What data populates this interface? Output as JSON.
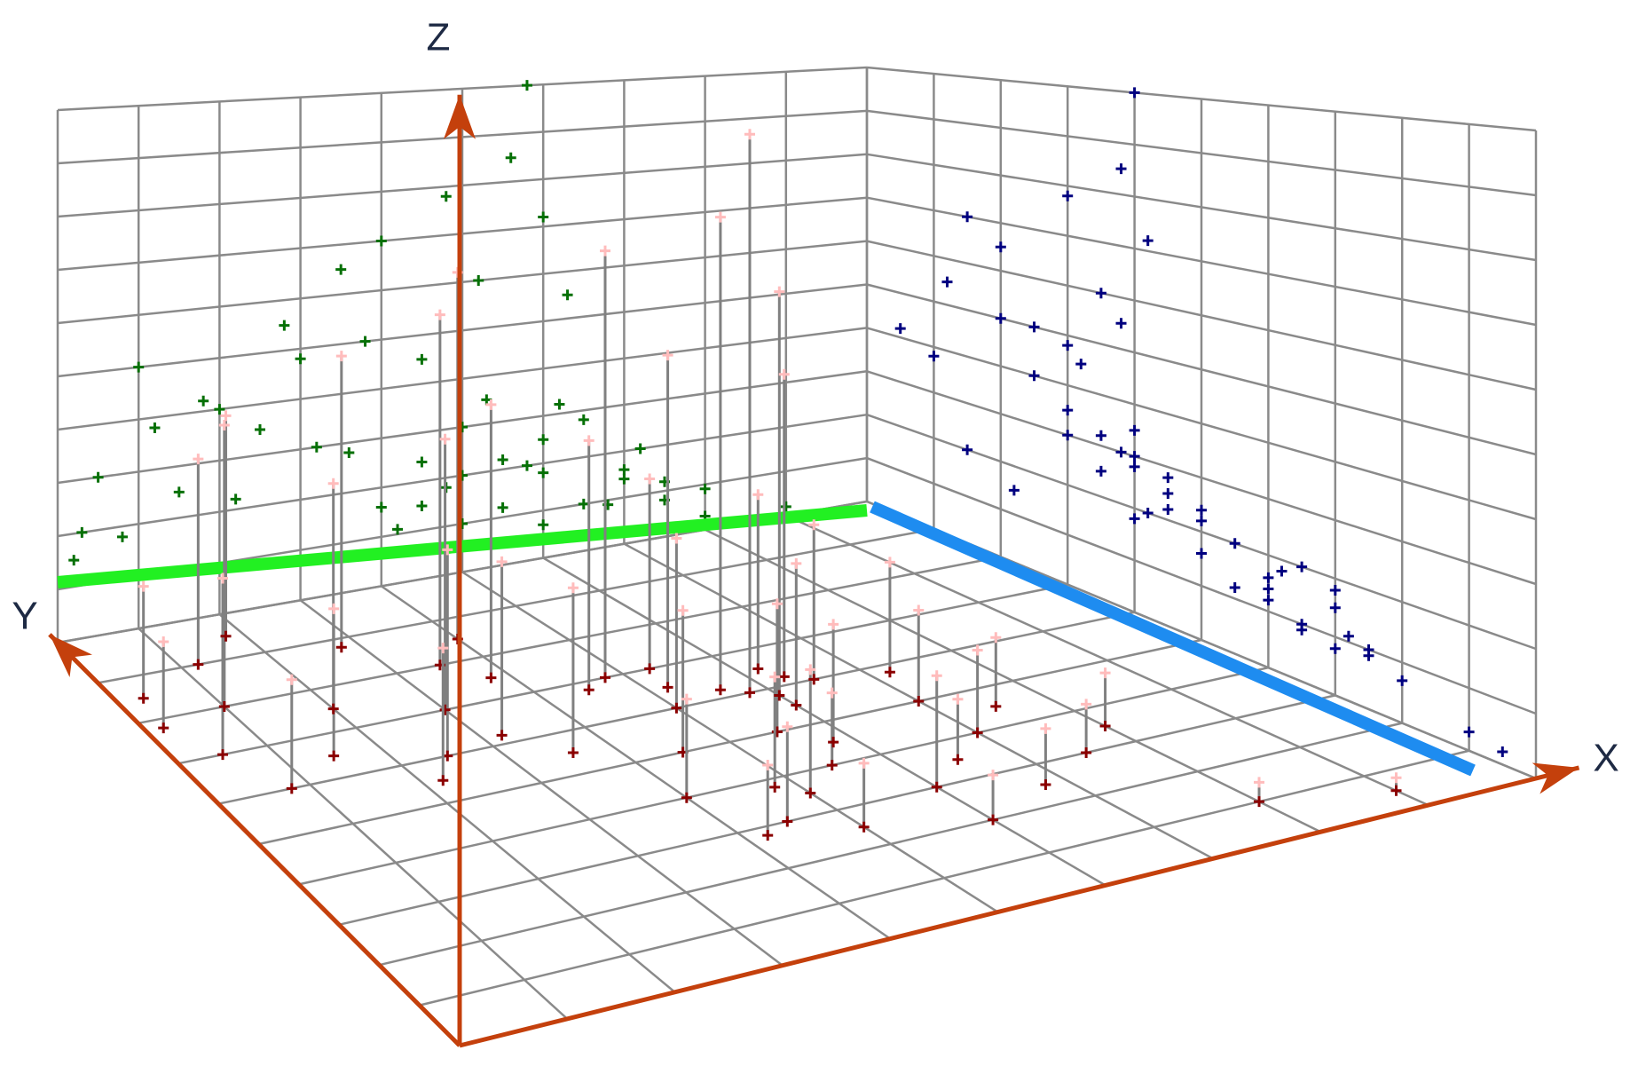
{
  "chart_data": {
    "type": "scatter3d",
    "x_label": "X",
    "y_label": "Y",
    "z_label": "Z",
    "xlim": [
      0,
      10
    ],
    "ylim": [
      0,
      10
    ],
    "zlim": [
      0,
      10
    ],
    "xticks": [
      0,
      1,
      2,
      3,
      4,
      5,
      6,
      7,
      8,
      9,
      10
    ],
    "yticks": [
      0,
      1,
      2,
      3,
      4,
      5,
      6,
      7,
      8,
      9,
      10
    ],
    "zticks": [
      0,
      1,
      2,
      3,
      4,
      5,
      6,
      7,
      8,
      9,
      10
    ],
    "grid": true,
    "colors": {
      "point": "#ffbcbc",
      "stem": "#808080",
      "floor": "#8b0000",
      "wall_y": "#067006",
      "wall_x": "#000080",
      "grid": "#8a8a8a",
      "axis": "#c4400c"
    },
    "series": [
      {
        "x": [
          4.5,
          5,
          5.5,
          6,
          6.5,
          7,
          7.5,
          5,
          6,
          5.5,
          6,
          6.5,
          5,
          4.5,
          7,
          7.5,
          8,
          4,
          4.2,
          6.8,
          5.8,
          6.2,
          5.3,
          4.8,
          7.2,
          5.8,
          5.6,
          6,
          5.2,
          4.8,
          4.5,
          6.3,
          0.5,
          1,
          1.5,
          2,
          2.5,
          0.3,
          1.2,
          3,
          3.5,
          2.8,
          3.2,
          0.8,
          2.2,
          1.8,
          3.8,
          4,
          3.6,
          0.2,
          8,
          9
        ],
        "y": [
          3,
          3.5,
          4,
          3,
          3.5,
          4,
          3,
          2.5,
          2,
          5,
          5.5,
          6,
          6,
          5,
          5,
          4.5,
          3.5,
          4,
          2.8,
          2.5,
          4.5,
          6.5,
          7,
          3.8,
          5.8,
          6,
          6.2,
          5.8,
          6.5,
          7,
          6.8,
          6.2,
          7,
          8,
          6.5,
          7.5,
          6,
          8.5,
          9,
          7,
          8,
          8.8,
          6.2,
          6,
          5.5,
          9.5,
          7.5,
          8.5,
          5.5,
          7.8,
          1,
          0.5
        ],
        "z": [
          1.5,
          2,
          1.2,
          1.8,
          1,
          1.4,
          0.8,
          1,
          0.7,
          2.2,
          2.5,
          2.8,
          3,
          2.4,
          1.6,
          1.2,
          0.9,
          1.6,
          1.1,
          0.9,
          2,
          3.2,
          3.5,
          1.8,
          2,
          10,
          8.5,
          7.2,
          6,
          7.8,
          4.5,
          5.5,
          3,
          5,
          2.5,
          4,
          3.5,
          2,
          3.8,
          4.8,
          6.5,
          5.5,
          3,
          1.8,
          2.2,
          4.2,
          5,
          7,
          2.8,
          1.5,
          0.3,
          0.2
        ]
      }
    ]
  }
}
